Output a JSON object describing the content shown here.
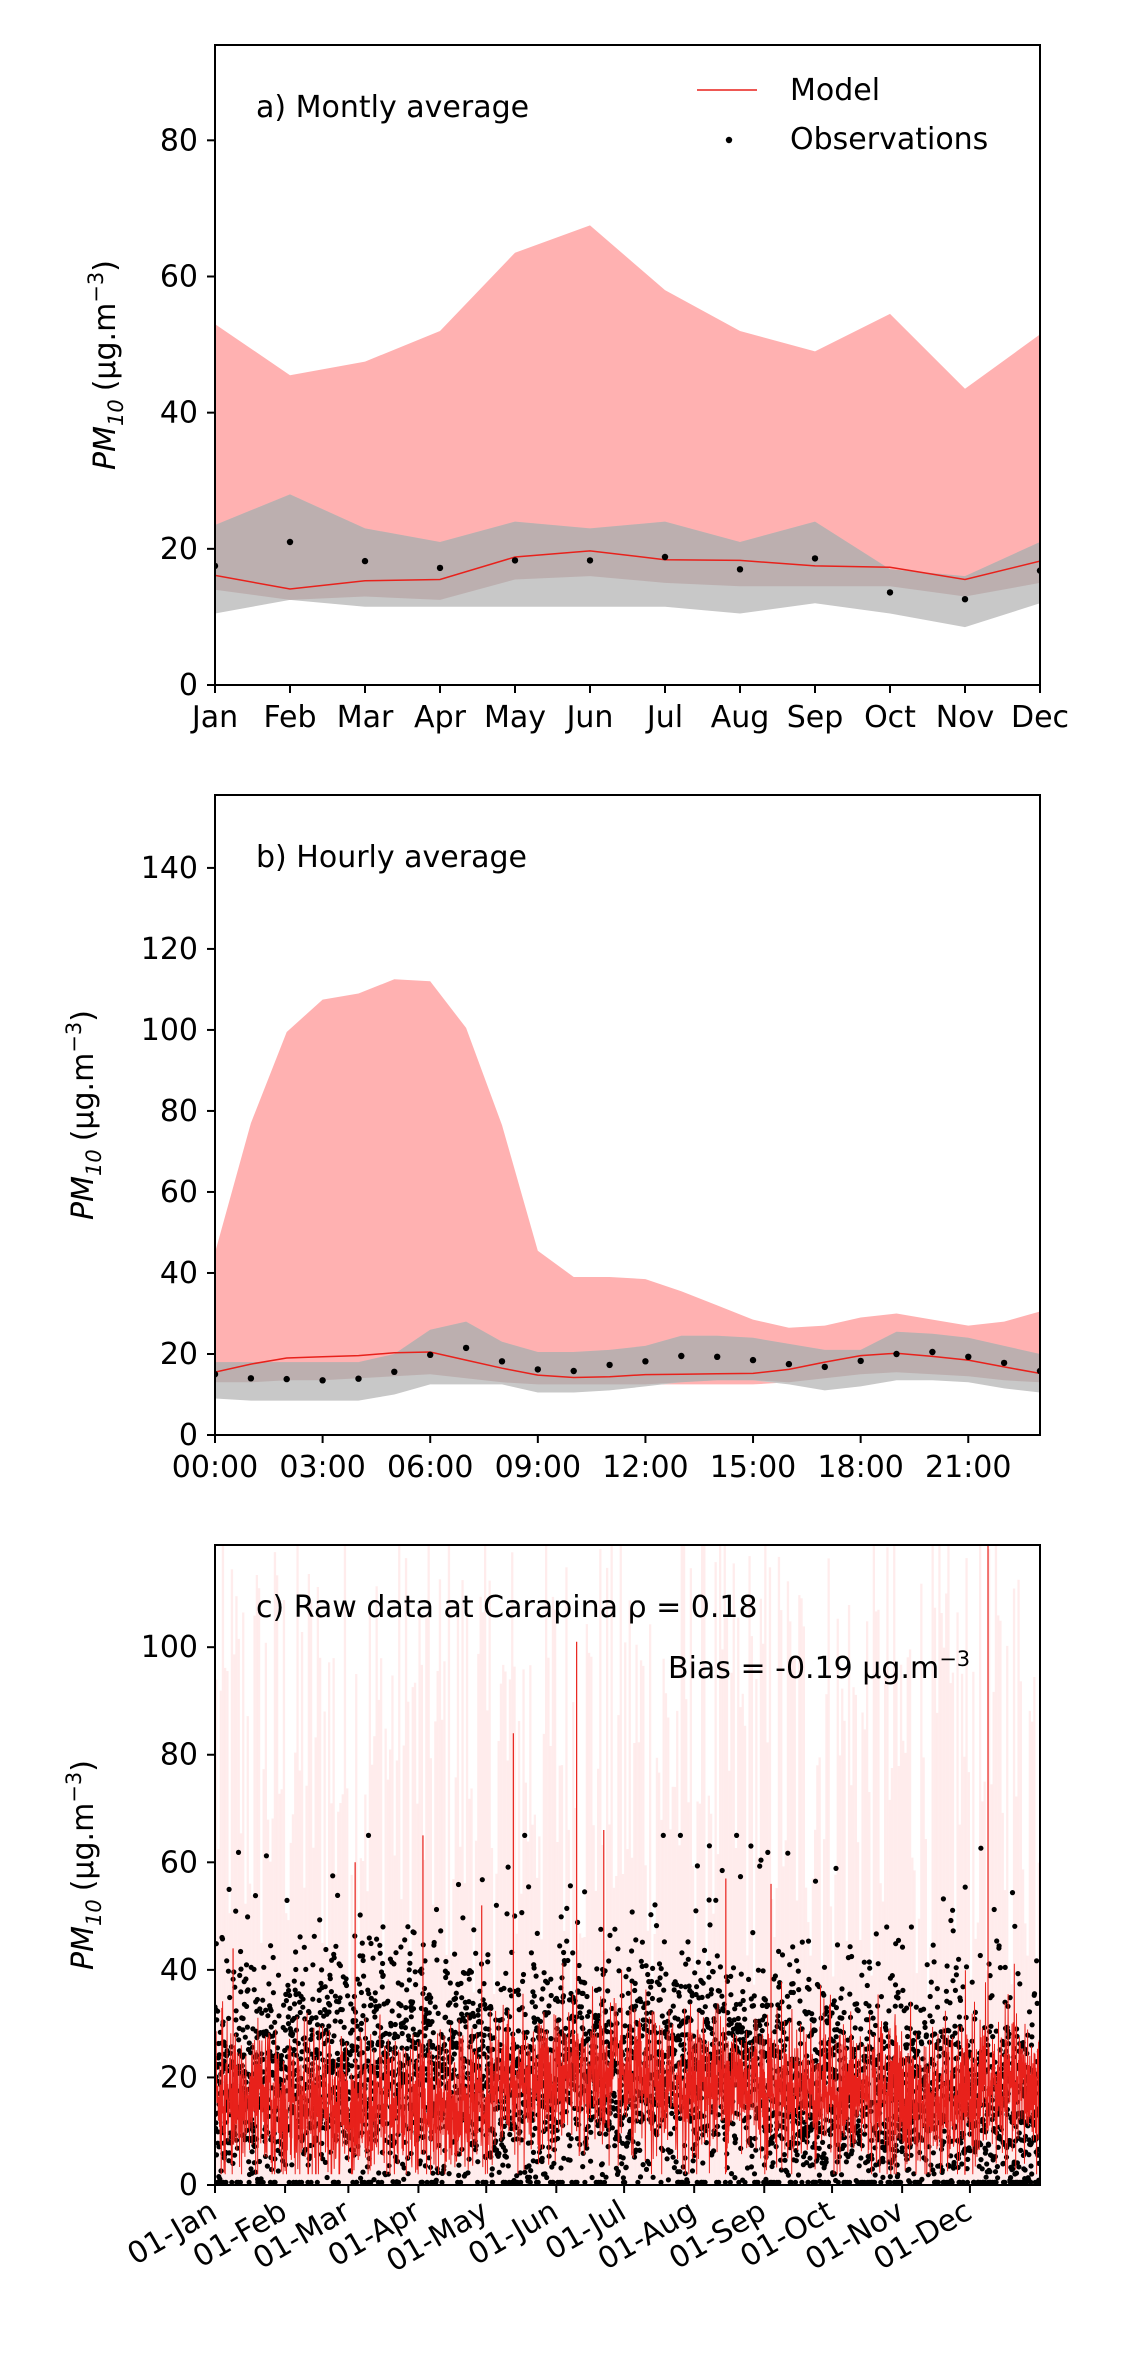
{
  "colors": {
    "model_line": "#e8211b",
    "model_band": "#ffb1b1",
    "obs_band": "#c8c8c8",
    "observations": "#000000",
    "raw_model_shade": "#ffdcdc"
  },
  "legend": {
    "model": "Model",
    "observations": "Observations",
    "placement": "top-right"
  },
  "chart_data": [
    {
      "type": "line",
      "annotation": "a) Montly average",
      "ylabel_base": "PM",
      "ylabel_sub": "10",
      "ylabel_units": "(μg.m",
      "ylabel_exp": "−3",
      "ylabel_close": ")",
      "ylim": [
        0,
        94
      ],
      "yticks": [
        0,
        20,
        40,
        60,
        80
      ],
      "categories": [
        "Jan",
        "Feb",
        "Mar",
        "Apr",
        "May",
        "Jun",
        "Jul",
        "Aug",
        "Sep",
        "Oct",
        "Nov",
        "Dec"
      ],
      "xpos": [
        0,
        1,
        2,
        3,
        4,
        5,
        6,
        7,
        8,
        9,
        10,
        11
      ],
      "xlim": [
        0,
        11
      ],
      "grid": false,
      "series": [
        {
          "name": "Model",
          "values": [
            16.1,
            14.1,
            15.3,
            15.5,
            18.8,
            19.7,
            18.4,
            18.3,
            17.5,
            17.3,
            15.5,
            18.2
          ]
        },
        {
          "name": "Observations",
          "values": [
            17.5,
            21.0,
            18.2,
            17.2,
            18.3,
            18.3,
            18.8,
            17.0,
            18.6,
            13.6,
            12.6,
            16.8
          ]
        }
      ],
      "model_band": {
        "lower": [
          14.0,
          12.5,
          13.0,
          12.5,
          15.5,
          16.0,
          15.0,
          14.5,
          14.5,
          14.5,
          13.0,
          15.0
        ],
        "upper": [
          53,
          45.5,
          47.5,
          52,
          63.5,
          67.5,
          58,
          52,
          49,
          54.5,
          43.5,
          51.5
        ]
      },
      "obs_band": {
        "lower": [
          10.5,
          12.5,
          11.5,
          11.5,
          11.5,
          11.5,
          11.5,
          10.5,
          12.0,
          10.5,
          8.5,
          12.0
        ],
        "upper": [
          23.5,
          28.0,
          23.0,
          21.0,
          24.0,
          23.0,
          24.0,
          21.0,
          24.0,
          17.0,
          16.0,
          21.0
        ]
      }
    },
    {
      "type": "line",
      "annotation": "b) Hourly average",
      "ylabel_base": "PM",
      "ylabel_sub": "10",
      "ylabel_units": "(μg.m",
      "ylabel_exp": "−3",
      "ylabel_close": ")",
      "ylim": [
        0,
        158
      ],
      "yticks": [
        0,
        20,
        40,
        60,
        80,
        100,
        120,
        140
      ],
      "xlim": [
        0,
        23
      ],
      "xticks": [
        0,
        3,
        6,
        9,
        12,
        15,
        18,
        21
      ],
      "xticklabels": [
        "00:00",
        "03:00",
        "06:00",
        "09:00",
        "12:00",
        "15:00",
        "18:00",
        "21:00"
      ],
      "grid": false,
      "hours": [
        0,
        1,
        2,
        3,
        4,
        5,
        6,
        7,
        8,
        9,
        10,
        11,
        12,
        13,
        14,
        15,
        16,
        17,
        18,
        19,
        20,
        21,
        22,
        23
      ],
      "series": [
        {
          "name": "Model",
          "values": [
            15.5,
            17.5,
            19.0,
            19.3,
            19.6,
            20.3,
            20.5,
            18.5,
            16.5,
            14.8,
            14.2,
            14.4,
            14.9,
            15.0,
            15.1,
            15.2,
            16.2,
            18.0,
            19.6,
            20.2,
            19.4,
            18.5,
            16.8,
            15.2
          ]
        },
        {
          "name": "Observations",
          "values": [
            15.0,
            14.0,
            13.8,
            13.5,
            13.9,
            15.6,
            19.8,
            21.5,
            18.2,
            16.2,
            15.8,
            17.3,
            18.2,
            19.5,
            19.3,
            18.5,
            17.5,
            16.8,
            18.3,
            20.0,
            20.5,
            19.3,
            17.8,
            15.8
          ]
        }
      ],
      "model_band": {
        "lower": [
          13,
          13,
          13.5,
          13.5,
          14,
          14.5,
          15,
          14,
          13,
          12.5,
          12.5,
          12.5,
          12.5,
          12.5,
          12.5,
          12.5,
          13,
          14,
          15,
          15.5,
          15,
          14.5,
          13.5,
          13
        ],
        "upper": [
          45,
          77,
          99.5,
          107.5,
          109,
          112.5,
          112,
          100.5,
          76.5,
          45.5,
          39,
          39,
          38.5,
          35.5,
          32,
          28.5,
          26.5,
          27,
          29,
          30,
          28.5,
          27,
          28,
          30.5
        ]
      },
      "obs_band": {
        "lower": [
          9,
          8.5,
          8.5,
          8.5,
          8.5,
          10,
          12.5,
          12.5,
          12.5,
          10.5,
          10.5,
          11,
          12,
          13,
          13.5,
          13.5,
          12.5,
          11,
          12,
          13.5,
          13.5,
          13,
          11.5,
          10.5
        ],
        "upper": [
          18,
          18,
          18,
          18,
          18,
          20,
          26,
          28,
          23,
          20.5,
          20.5,
          21,
          22,
          24.5,
          24.5,
          24,
          22.5,
          21,
          21,
          25.5,
          25,
          24,
          22,
          20
        ]
      }
    },
    {
      "type": "scatter",
      "annotation": "c) Raw data at Carapina ρ = 0.18",
      "bias_text": "Bias = -0.19 μg.m",
      "bias_exp": "−3",
      "ylabel_base": "PM",
      "ylabel_sub": "10",
      "ylabel_units": "(μg.m",
      "ylabel_exp": "−3",
      "ylabel_close": ")",
      "ylim": [
        0,
        119
      ],
      "yticks": [
        0,
        20,
        40,
        60,
        80,
        100
      ],
      "xlim": [
        0,
        365
      ],
      "xticks": [
        0,
        31,
        59,
        90,
        120,
        151,
        181,
        212,
        243,
        273,
        304,
        334
      ],
      "xticklabels": [
        "01-Jan",
        "01-Feb",
        "01-Mar",
        "01-Apr",
        "01-May",
        "01-Jun",
        "01-Jul",
        "01-Aug",
        "01-Sep",
        "01-Oct",
        "01-Nov",
        "01-Dec"
      ],
      "grid": false,
      "daily_obs_mean": [
        18,
        20,
        22,
        21,
        18,
        20,
        22,
        21,
        17,
        16,
        16,
        13
      ],
      "daily_model_mean": [
        15,
        14,
        15,
        15,
        19,
        20,
        18,
        19,
        18,
        17,
        15,
        18
      ],
      "model_peaks": [
        {
          "day": 8,
          "value": 44
        },
        {
          "day": 62,
          "value": 60
        },
        {
          "day": 92,
          "value": 65
        },
        {
          "day": 118,
          "value": 52
        },
        {
          "day": 132,
          "value": 84
        },
        {
          "day": 160,
          "value": 101
        },
        {
          "day": 172,
          "value": 66
        },
        {
          "day": 226,
          "value": 57
        },
        {
          "day": 246,
          "value": 56
        },
        {
          "day": 342,
          "value": 119
        }
      ]
    }
  ]
}
